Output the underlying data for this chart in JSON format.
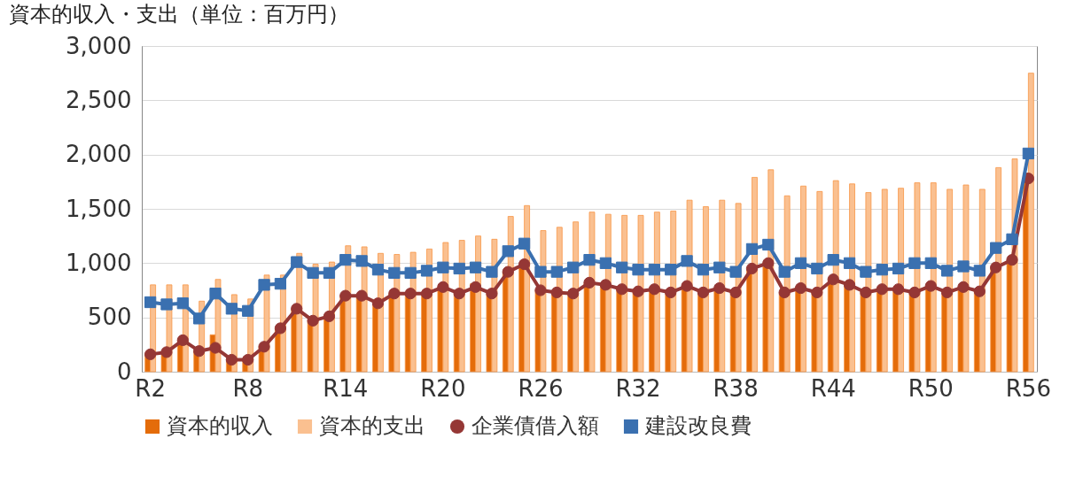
{
  "chart_data": {
    "type": "bar",
    "title": "資本的収入・支出（単位：百万円）",
    "categories": [
      "R2",
      null,
      null,
      null,
      null,
      null,
      "R8",
      null,
      null,
      null,
      null,
      null,
      "R14",
      null,
      null,
      null,
      null,
      null,
      "R20",
      null,
      null,
      null,
      null,
      null,
      "R26",
      null,
      null,
      null,
      null,
      null,
      "R32",
      null,
      null,
      null,
      null,
      null,
      "R38",
      null,
      null,
      null,
      null,
      null,
      "R44",
      null,
      null,
      null,
      null,
      null,
      "R50",
      null,
      null,
      null,
      null,
      null,
      "R56"
    ],
    "series": [
      {
        "name": "資本的収入",
        "color": "#e46c0a",
        "values": [
          160,
          180,
          290,
          190,
          340,
          110,
          110,
          230,
          400,
          580,
          470,
          510,
          700,
          700,
          630,
          720,
          720,
          720,
          780,
          720,
          810,
          720,
          920,
          990,
          750,
          730,
          720,
          820,
          800,
          760,
          740,
          760,
          730,
          790,
          730,
          770,
          730,
          950,
          1000,
          730,
          770,
          730,
          840,
          800,
          730,
          760,
          760,
          730,
          790,
          730,
          780,
          740,
          960,
          1030,
          1830
        ]
      },
      {
        "name": "資本的支出",
        "color": "#fac090",
        "values": [
          800,
          800,
          800,
          650,
          850,
          710,
          670,
          890,
          890,
          1090,
          990,
          1010,
          1160,
          1150,
          1090,
          1080,
          1100,
          1130,
          1190,
          1210,
          1250,
          1220,
          1430,
          1530,
          1300,
          1330,
          1380,
          1470,
          1450,
          1440,
          1440,
          1470,
          1480,
          1580,
          1520,
          1580,
          1550,
          1790,
          1860,
          1620,
          1710,
          1660,
          1760,
          1730,
          1650,
          1680,
          1690,
          1740,
          1740,
          1680,
          1720,
          1680,
          1880,
          1960,
          2750
        ]
      },
      {
        "name": "企業債借入額",
        "type": "line",
        "marker": "circle",
        "color": "#953735",
        "values": [
          160,
          180,
          290,
          190,
          220,
          110,
          110,
          230,
          400,
          580,
          470,
          510,
          700,
          700,
          630,
          720,
          720,
          720,
          780,
          720,
          780,
          720,
          920,
          990,
          750,
          730,
          720,
          820,
          800,
          760,
          740,
          760,
          730,
          790,
          730,
          770,
          730,
          950,
          1000,
          730,
          770,
          730,
          850,
          800,
          730,
          760,
          760,
          730,
          790,
          730,
          780,
          740,
          960,
          1030,
          1780
        ]
      },
      {
        "name": "建設改良費",
        "type": "line",
        "marker": "square",
        "color": "#3a70b0",
        "values": [
          640,
          620,
          630,
          490,
          720,
          580,
          560,
          800,
          810,
          1010,
          910,
          910,
          1030,
          1020,
          940,
          910,
          910,
          930,
          960,
          950,
          960,
          920,
          1110,
          1180,
          920,
          920,
          960,
          1030,
          1000,
          960,
          940,
          940,
          940,
          1020,
          940,
          960,
          920,
          1130,
          1170,
          920,
          1000,
          950,
          1030,
          1000,
          920,
          940,
          950,
          1000,
          1000,
          930,
          970,
          930,
          1140,
          1220,
          2010
        ]
      }
    ],
    "ylim": [
      0,
      3000
    ],
    "yticks": [
      0,
      500,
      {
        "value": 1000,
        "label": "1,000"
      },
      {
        "value": 1500,
        "label": "1,500"
      },
      {
        "value": 2000,
        "label": "2,000"
      },
      {
        "value": 2500,
        "label": "2,500"
      },
      {
        "value": 3000,
        "label": "3,000"
      }
    ],
    "grid": "y",
    "legend": "bottom"
  }
}
